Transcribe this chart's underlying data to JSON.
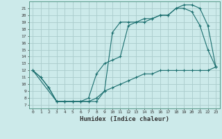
{
  "xlabel": "Humidex (Indice chaleur)",
  "background_color": "#cceaea",
  "grid_color": "#aacccc",
  "line_color": "#1a6e6e",
  "xlim": [
    -0.5,
    23.5
  ],
  "ylim": [
    6.5,
    22.0
  ],
  "xticks": [
    0,
    1,
    2,
    3,
    4,
    5,
    6,
    7,
    8,
    9,
    10,
    11,
    12,
    13,
    14,
    15,
    16,
    17,
    18,
    19,
    20,
    21,
    22,
    23
  ],
  "yticks": [
    7,
    8,
    9,
    10,
    11,
    12,
    13,
    14,
    15,
    16,
    17,
    18,
    19,
    20,
    21
  ],
  "line1_x": [
    0,
    1,
    2,
    3,
    4,
    5,
    6,
    7,
    8,
    9,
    10,
    11,
    12,
    13,
    14,
    15,
    16,
    17,
    18,
    19,
    20,
    21,
    22,
    23
  ],
  "line1_y": [
    12,
    11,
    9.5,
    7.5,
    7.5,
    7.5,
    7.5,
    7.5,
    8,
    9,
    9.5,
    10,
    10.5,
    11,
    11.5,
    11.5,
    12,
    12,
    12,
    12,
    12,
    12,
    12,
    12.5
  ],
  "line2_x": [
    0,
    1,
    2,
    3,
    4,
    5,
    6,
    7,
    8,
    9,
    10,
    11,
    12,
    13,
    14,
    15,
    16,
    17,
    18,
    19,
    20,
    21,
    22,
    23
  ],
  "line2_y": [
    12,
    11,
    9.5,
    7.5,
    7.5,
    7.5,
    7.5,
    8,
    11.5,
    13,
    13.5,
    14,
    18.5,
    19,
    19,
    19.5,
    20,
    20,
    21,
    21,
    20.5,
    18.5,
    15,
    12.5
  ],
  "line3_x": [
    0,
    3,
    4,
    5,
    6,
    7,
    8,
    9,
    10,
    11,
    12,
    13,
    14,
    15,
    16,
    17,
    18,
    19,
    20,
    21,
    22,
    23
  ],
  "line3_y": [
    12,
    7.5,
    7.5,
    7.5,
    7.5,
    7.5,
    7.5,
    9,
    17.5,
    19,
    19,
    19,
    19.5,
    19.5,
    20,
    20,
    21,
    21.5,
    21.5,
    21,
    18.5,
    12.5
  ]
}
